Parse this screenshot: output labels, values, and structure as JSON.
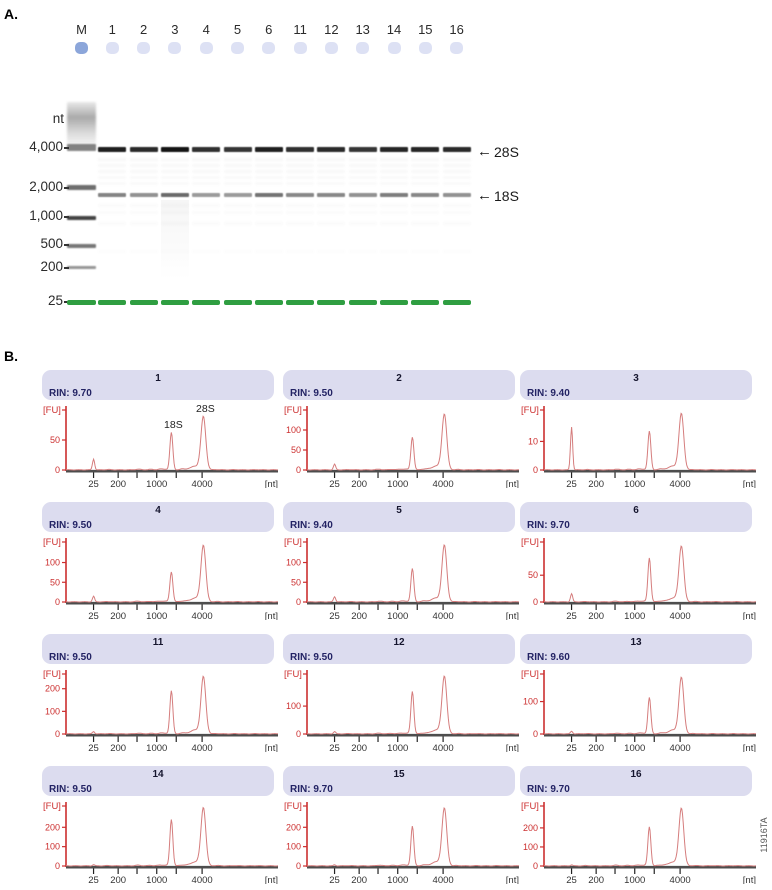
{
  "figure": {
    "panel_a_label": "A.",
    "panel_b_label": "B.",
    "figure_code": "11916TA"
  },
  "panel_a": {
    "lane_labels": [
      "M",
      "1",
      "2",
      "3",
      "4",
      "5",
      "6",
      "11",
      "12",
      "13",
      "14",
      "15",
      "16"
    ],
    "marker_axis_label": "nt",
    "marker_sizes": [
      "4,000",
      "2,000",
      "1,000",
      "500",
      "200",
      "25"
    ],
    "band_annotations": {
      "s28": "28S",
      "s18": "18S"
    },
    "colors": {
      "marker_well": "#8ca6da",
      "sample_well": "#dde1f4",
      "green_band": "#2f9e41",
      "band_dark": "#141414",
      "band_gray": "#3a3a3a"
    },
    "lanes": [
      {
        "label": "1",
        "s28": 0.95,
        "s18": 0.62
      },
      {
        "label": "2",
        "s28": 0.9,
        "s18": 0.55
      },
      {
        "label": "3",
        "s28": 1.0,
        "s18": 0.75
      },
      {
        "label": "4",
        "s28": 0.88,
        "s18": 0.5
      },
      {
        "label": "5",
        "s28": 0.85,
        "s18": 0.5
      },
      {
        "label": "6",
        "s28": 0.95,
        "s18": 0.7
      },
      {
        "label": "11",
        "s28": 0.88,
        "s18": 0.6
      },
      {
        "label": "12",
        "s28": 0.9,
        "s18": 0.6
      },
      {
        "label": "13",
        "s28": 0.85,
        "s18": 0.55
      },
      {
        "label": "14",
        "s28": 0.92,
        "s18": 0.65
      },
      {
        "label": "15",
        "s28": 0.92,
        "s18": 0.6
      },
      {
        "label": "16",
        "s28": 0.9,
        "s18": 0.55
      }
    ]
  },
  "panel_b": {
    "axis_colors": {
      "y_axis_red": "#cc2f2f",
      "trace": "#d57d7d",
      "x_axis": "#4d4d4d",
      "x_text": "#333333"
    },
    "header_color": "#dcdcef"
  },
  "chart_data": [
    {
      "type": "line",
      "title": "1",
      "rin_label": "RIN: 9.70",
      "xlabel": "[nt]",
      "ylabel": "[FU]",
      "x_ticks": [
        "25",
        "200",
        "1000",
        "4000"
      ],
      "y_ticks": [
        0,
        50
      ],
      "ylim": [
        0,
        100
      ],
      "peaks": {
        "marker_25nt": 18,
        "s18": 62,
        "s28": 88
      },
      "peak_annotations": {
        "s18": "18S",
        "s28": "28S"
      }
    },
    {
      "type": "line",
      "title": "2",
      "rin_label": "RIN: 9.50",
      "xlabel": "[nt]",
      "ylabel": "[FU]",
      "x_ticks": [
        "25",
        "200",
        "1000",
        "4000"
      ],
      "y_ticks": [
        0,
        50,
        100
      ],
      "ylim": [
        0,
        150
      ],
      "peaks": {
        "marker_25nt": 14,
        "s18": 82,
        "s28": 138
      }
    },
    {
      "type": "line",
      "title": "3",
      "rin_label": "RIN: 9.40",
      "xlabel": "[nt]",
      "ylabel": "[FU]",
      "x_ticks": [
        "25",
        "200",
        "1000",
        "4000"
      ],
      "y_ticks": [
        0,
        10
      ],
      "ylim": [
        0,
        21
      ],
      "peaks": {
        "marker_25nt": 15,
        "s18": 13.5,
        "s28": 19.5
      }
    },
    {
      "type": "line",
      "title": "4",
      "rin_label": "RIN: 9.50",
      "xlabel": "[nt]",
      "ylabel": "[FU]",
      "x_ticks": [
        "25",
        "200",
        "1000",
        "4000"
      ],
      "y_ticks": [
        0,
        50,
        100
      ],
      "ylim": [
        0,
        152
      ],
      "peaks": {
        "marker_25nt": 14,
        "s18": 76,
        "s28": 142
      }
    },
    {
      "type": "line",
      "title": "5",
      "rin_label": "RIN: 9.40",
      "xlabel": "[nt]",
      "ylabel": "[FU]",
      "x_ticks": [
        "25",
        "200",
        "1000",
        "4000"
      ],
      "y_ticks": [
        0,
        50,
        100
      ],
      "ylim": [
        0,
        152
      ],
      "peaks": {
        "marker_25nt": 13,
        "s18": 84,
        "s28": 142
      }
    },
    {
      "type": "line",
      "title": "6",
      "rin_label": "RIN: 9.70",
      "xlabel": "[nt]",
      "ylabel": "[FU]",
      "x_ticks": [
        "25",
        "200",
        "1000",
        "4000"
      ],
      "y_ticks": [
        0,
        50
      ],
      "ylim": [
        0,
        112
      ],
      "peaks": {
        "marker_25nt": 15,
        "s18": 82,
        "s28": 103
      }
    },
    {
      "type": "line",
      "title": "11",
      "rin_label": "RIN: 9.50",
      "xlabel": "[nt]",
      "ylabel": "[FU]",
      "x_ticks": [
        "25",
        "200",
        "1000",
        "4000"
      ],
      "y_ticks": [
        0,
        100,
        200
      ],
      "ylim": [
        0,
        265
      ],
      "peaks": {
        "marker_25nt": 10,
        "s18": 190,
        "s28": 250
      }
    },
    {
      "type": "line",
      "title": "12",
      "rin_label": "RIN: 9.50",
      "xlabel": "[nt]",
      "ylabel": "[FU]",
      "x_ticks": [
        "25",
        "200",
        "1000",
        "4000"
      ],
      "y_ticks": [
        0,
        100
      ],
      "ylim": [
        0,
        215
      ],
      "peaks": {
        "marker_25nt": 8,
        "s18": 152,
        "s28": 205
      }
    },
    {
      "type": "line",
      "title": "13",
      "rin_label": "RIN: 9.60",
      "xlabel": "[nt]",
      "ylabel": "[FU]",
      "x_ticks": [
        "25",
        "200",
        "1000",
        "4000"
      ],
      "y_ticks": [
        0,
        100
      ],
      "ylim": [
        0,
        185
      ],
      "peaks": {
        "marker_25nt": 8,
        "s18": 112,
        "s28": 172
      }
    },
    {
      "type": "line",
      "title": "14",
      "rin_label": "RIN: 9.50",
      "xlabel": "[nt]",
      "ylabel": "[FU]",
      "x_ticks": [
        "25",
        "200",
        "1000",
        "4000"
      ],
      "y_ticks": [
        0,
        100,
        200
      ],
      "ylim": [
        0,
        310
      ],
      "peaks": {
        "marker_25nt": 6,
        "s18": 240,
        "s28": 298
      }
    },
    {
      "type": "line",
      "title": "15",
      "rin_label": "RIN: 9.70",
      "xlabel": "[nt]",
      "ylabel": "[FU]",
      "x_ticks": [
        "25",
        "200",
        "1000",
        "4000"
      ],
      "y_ticks": [
        0,
        100,
        200
      ],
      "ylim": [
        0,
        310
      ],
      "peaks": {
        "marker_25nt": 5,
        "s18": 205,
        "s28": 295
      }
    },
    {
      "type": "line",
      "title": "16",
      "rin_label": "RIN: 9.70",
      "xlabel": "[nt]",
      "ylabel": "[FU]",
      "x_ticks": [
        "25",
        "200",
        "1000",
        "4000"
      ],
      "y_ticks": [
        0,
        100,
        200
      ],
      "ylim": [
        0,
        315
      ],
      "peaks": {
        "marker_25nt": 5,
        "s18": 205,
        "s28": 300
      }
    }
  ]
}
